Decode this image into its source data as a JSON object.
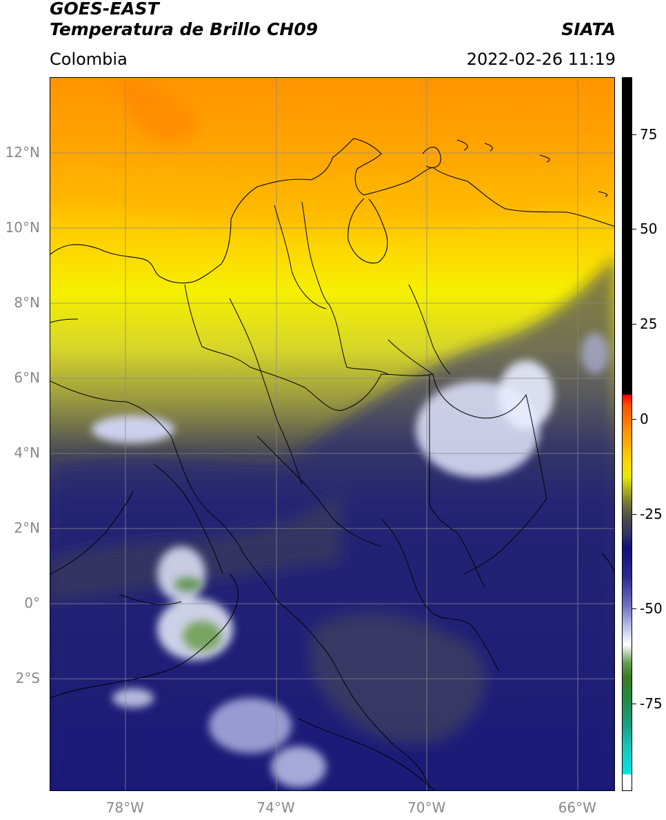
{
  "header": {
    "satellite": "GOES-EAST",
    "product": "Temperatura de Brillo CH09",
    "institution": "SIATA",
    "region": "Colombia",
    "datetime": "2022-02-26 11:19"
  },
  "map": {
    "extent": {
      "lon_min": -80,
      "lon_max": -65,
      "lat_min": -5,
      "lat_max": 14
    },
    "latitude_ticks": [
      {
        "value": 12,
        "label": "12°N"
      },
      {
        "value": 10,
        "label": "10°N"
      },
      {
        "value": 8,
        "label": "8°N"
      },
      {
        "value": 6,
        "label": "6°N"
      },
      {
        "value": 4,
        "label": "4°N"
      },
      {
        "value": 2,
        "label": "2°N"
      },
      {
        "value": 0,
        "label": "0°"
      },
      {
        "value": -2,
        "label": "2°S"
      }
    ],
    "longitude_ticks": [
      {
        "value": -78,
        "label": "78°W"
      },
      {
        "value": -74,
        "label": "74°W"
      },
      {
        "value": -70,
        "label": "70°W"
      },
      {
        "value": -66,
        "label": "66°W"
      }
    ],
    "gridlines": true,
    "gridline_color": "#888888"
  },
  "colorbar": {
    "range": [
      -98,
      90
    ],
    "ticks": [
      {
        "value": 75,
        "label": "75"
      },
      {
        "value": 50,
        "label": "50"
      },
      {
        "value": 25,
        "label": "25"
      },
      {
        "value": 0,
        "label": "0"
      },
      {
        "value": -25,
        "label": "-25"
      },
      {
        "value": -50,
        "label": "-50"
      },
      {
        "value": -75,
        "label": "-75"
      }
    ]
  }
}
